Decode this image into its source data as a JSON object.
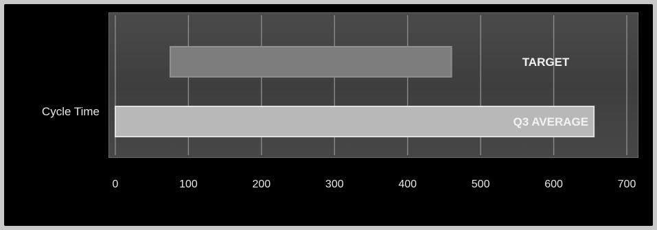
{
  "chart_data": {
    "type": "bar",
    "orientation": "horizontal",
    "category_axis_label": "Cycle Time",
    "x_ticks": [
      0,
      100,
      200,
      300,
      400,
      500,
      600,
      700
    ],
    "xlim": [
      0,
      700
    ],
    "grid": true,
    "series": [
      {
        "name": "TARGET",
        "value": 460,
        "color": "#7d7d7d"
      },
      {
        "name": "Q3 AVERAGE",
        "value": 655,
        "color": "#b8b8b8"
      }
    ]
  }
}
